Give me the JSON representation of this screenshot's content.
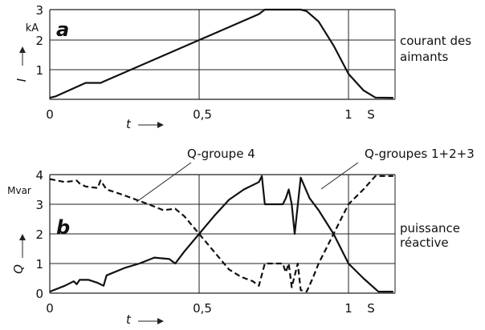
{
  "chart_data": [
    {
      "type": "line",
      "panel_label": "a",
      "ylabel": "I",
      "yunit": "kA",
      "xlabel": "t",
      "xunit": "S",
      "xlim": [
        0,
        1.15
      ],
      "ylim": [
        0,
        3
      ],
      "yticks": [
        "0",
        "1",
        "2",
        "3"
      ],
      "xticks": [
        "0",
        "0,5",
        "1"
      ],
      "grid": true,
      "annotations": [
        "courant des",
        "aimants"
      ],
      "series": [
        {
          "x": [
            0,
            0.02,
            0.12,
            0.17,
            0.7,
            0.72,
            0.84,
            0.86,
            0.9,
            0.95,
            1.0,
            1.05,
            1.09,
            1.15
          ],
          "y": [
            0.05,
            0.1,
            0.55,
            0.55,
            2.85,
            3.0,
            3.0,
            2.95,
            2.6,
            1.8,
            0.85,
            0.3,
            0.06,
            0.05
          ]
        }
      ]
    },
    {
      "type": "line",
      "panel_label": "b",
      "ylabel": "Q",
      "yunit": "Mvar",
      "xlabel": "t",
      "xunit": "S",
      "xlim": [
        0,
        1.15
      ],
      "ylim": [
        0,
        4
      ],
      "yticks": [
        "0",
        "1",
        "2",
        "3",
        "4"
      ],
      "xticks": [
        "0",
        "0,5",
        "1"
      ],
      "grid": true,
      "annotations": [
        "puissance",
        "réactive"
      ],
      "series": [
        {
          "name": "Q-groupe 4",
          "style": "dashed",
          "x": [
            0,
            0.05,
            0.09,
            0.1,
            0.12,
            0.16,
            0.17,
            0.19,
            0.25,
            0.33,
            0.38,
            0.42,
            0.45,
            0.5,
            0.55,
            0.6,
            0.64,
            0.68,
            0.7,
            0.72,
            0.78,
            0.79,
            0.8,
            0.81,
            0.83,
            0.84,
            0.86,
            0.88,
            0.9,
            0.95,
            1.0,
            1.05,
            1.09,
            1.15
          ],
          "y": [
            3.85,
            3.75,
            3.8,
            3.7,
            3.6,
            3.55,
            3.8,
            3.5,
            3.3,
            3.0,
            2.8,
            2.85,
            2.6,
            2.0,
            1.4,
            0.8,
            0.55,
            0.4,
            0.25,
            1.0,
            1.0,
            0.7,
            1.0,
            0.2,
            1.0,
            0.1,
            0.05,
            0.5,
            1.0,
            2.0,
            3.0,
            3.5,
            3.95,
            3.95
          ]
        },
        {
          "name": "Q-groupes 1+2+3",
          "style": "solid",
          "x": [
            0,
            0.05,
            0.08,
            0.09,
            0.1,
            0.13,
            0.16,
            0.18,
            0.19,
            0.25,
            0.3,
            0.35,
            0.4,
            0.42,
            0.45,
            0.5,
            0.55,
            0.6,
            0.65,
            0.7,
            0.71,
            0.72,
            0.78,
            0.79,
            0.8,
            0.81,
            0.82,
            0.84,
            0.87,
            0.9,
            0.95,
            1.0,
            1.05,
            1.1,
            1.15
          ],
          "y": [
            0.05,
            0.25,
            0.4,
            0.3,
            0.45,
            0.45,
            0.35,
            0.25,
            0.6,
            0.85,
            1.0,
            1.2,
            1.15,
            1.0,
            1.4,
            2.0,
            2.6,
            3.15,
            3.5,
            3.75,
            3.95,
            3.0,
            3.0,
            3.2,
            3.5,
            3.0,
            2.0,
            3.9,
            3.2,
            2.8,
            2.0,
            1.0,
            0.5,
            0.05,
            0.05
          ]
        }
      ]
    }
  ]
}
